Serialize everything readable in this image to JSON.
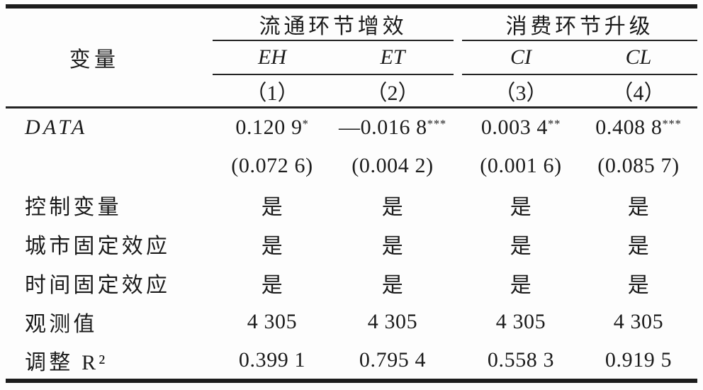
{
  "page": {
    "background": "#fdfdfd",
    "text_color": "#1b1b1b",
    "rule_color": "#1d1d1d"
  },
  "table": {
    "var_header": "变量",
    "groups": [
      {
        "label": "流通环节增效",
        "cols": [
          "EH",
          "ET"
        ]
      },
      {
        "label": "消费环节升级",
        "cols": [
          "CI",
          "CL"
        ]
      }
    ],
    "col_numbers": [
      "（1）",
      "（2）",
      "（3）",
      "（4）"
    ],
    "rows": [
      {
        "label": "DATA",
        "italic": true,
        "values": [
          {
            "v": "0.120 9",
            "sup": "*"
          },
          {
            "v": "—0.016 8",
            "sup": "***"
          },
          {
            "v": "0.003 4",
            "sup": "**"
          },
          {
            "v": "0.408 8",
            "sup": "***"
          }
        ]
      },
      {
        "label": "",
        "values": [
          "(0.072 6)",
          "(0.004 2)",
          "(0.001 6)",
          "(0.085 7)"
        ]
      },
      {
        "label": "控制变量",
        "values": [
          "是",
          "是",
          "是",
          "是"
        ]
      },
      {
        "label": "城市固定效应",
        "values": [
          "是",
          "是",
          "是",
          "是"
        ]
      },
      {
        "label": "时间固定效应",
        "values": [
          "是",
          "是",
          "是",
          "是"
        ]
      },
      {
        "label": "观测值",
        "values": [
          "4 305",
          "4 305",
          "4 305",
          "4 305"
        ]
      },
      {
        "label": "调整 R²",
        "values": [
          "0.399 1",
          "0.795 4",
          "0.558 3",
          "0.919 5"
        ]
      }
    ]
  }
}
